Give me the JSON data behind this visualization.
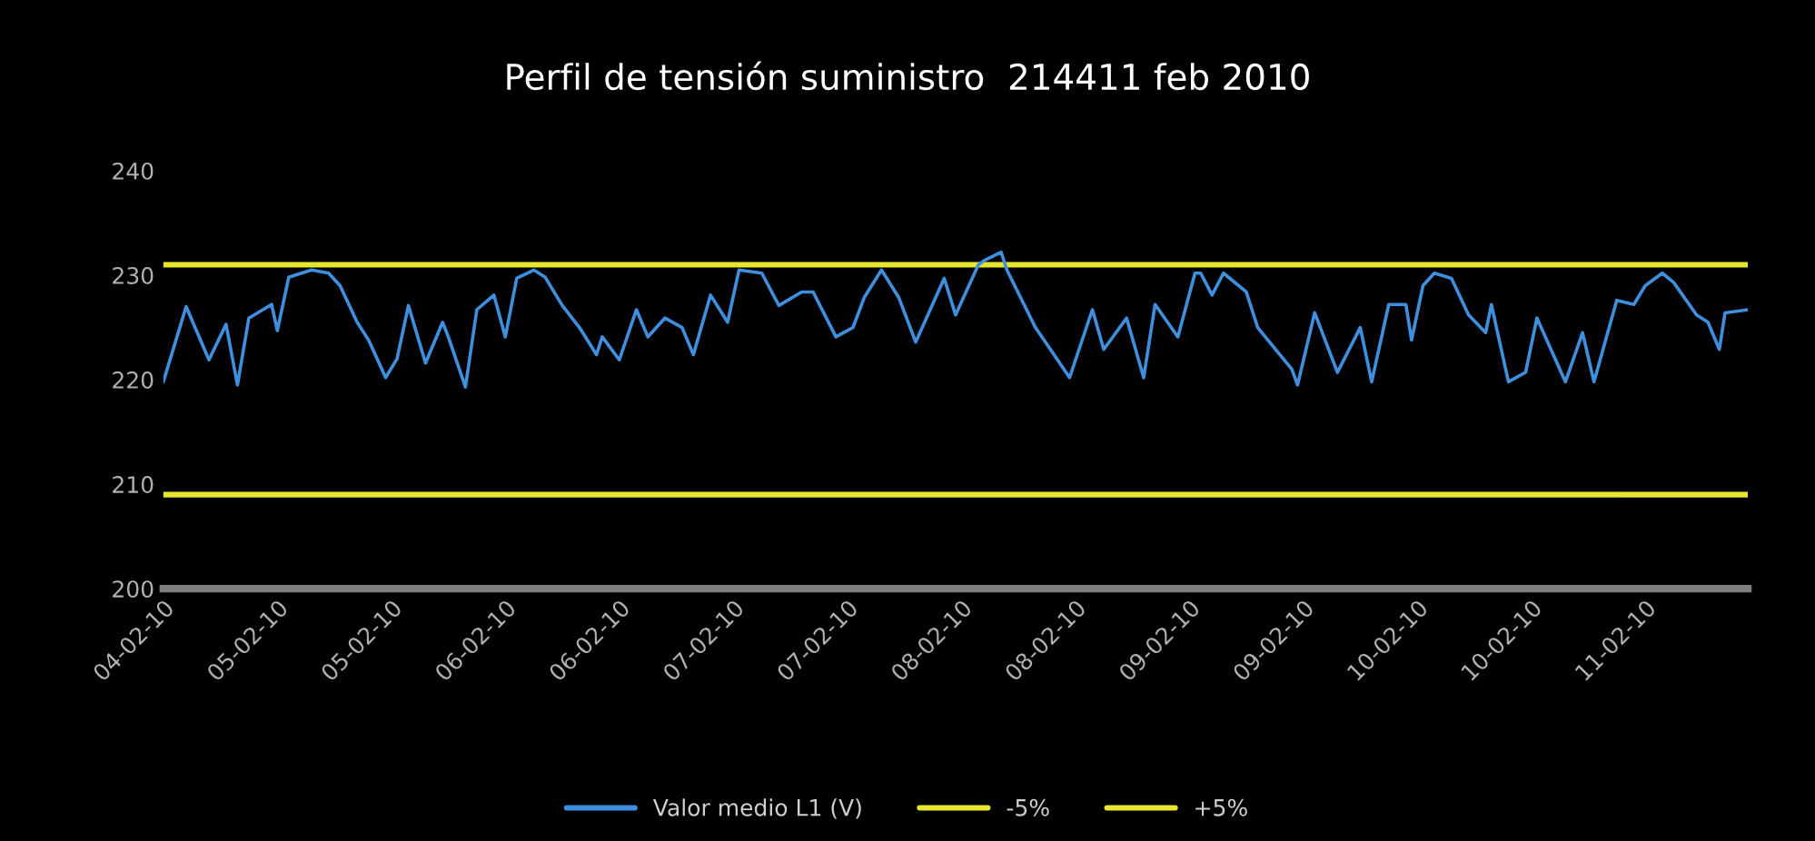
{
  "chart_data": {
    "type": "line",
    "title": "Perfil de tensión suministro  214411 feb 2010",
    "ylim": [
      200,
      240
    ],
    "yticks": [
      200,
      210,
      220,
      230,
      240
    ],
    "categories": [
      "04-02-10",
      null,
      null,
      null,
      null,
      null,
      null,
      null,
      null,
      null,
      null,
      null,
      null,
      null,
      null,
      null,
      null,
      null,
      null,
      null,
      "05-02-10",
      null,
      null,
      null,
      null,
      null,
      null,
      null,
      null,
      null,
      null,
      null,
      null,
      null,
      null,
      null,
      null,
      null,
      null,
      null,
      "05-02-10",
      null,
      null,
      null,
      null,
      null,
      null,
      null,
      null,
      null,
      null,
      null,
      null,
      null,
      null,
      null,
      null,
      null,
      null,
      null,
      "06-02-10",
      null,
      null,
      null,
      null,
      null,
      null,
      null,
      null,
      null,
      null,
      null,
      null,
      null,
      null,
      null,
      null,
      null,
      null,
      null,
      "06-02-10",
      null,
      null,
      null,
      null,
      null,
      null,
      null,
      null,
      null,
      null,
      null,
      null,
      null,
      null,
      null,
      null,
      null,
      null,
      null,
      "07-02-10",
      null,
      null,
      null,
      null,
      null,
      null,
      null,
      null,
      null,
      null,
      null,
      null,
      null,
      null,
      null,
      null,
      null,
      null,
      null,
      "07-02-10",
      null,
      null,
      null,
      null,
      null,
      null,
      null,
      null,
      null,
      null,
      null,
      null,
      null,
      null,
      null,
      null,
      null,
      null,
      null,
      "08-02-10",
      null,
      null,
      null,
      null,
      null,
      null,
      null,
      null,
      null,
      null,
      null,
      null,
      null,
      null,
      null,
      null,
      null,
      null,
      null,
      "08-02-10",
      null,
      null,
      null,
      null,
      null,
      null,
      null,
      null,
      null,
      null,
      null,
      null,
      null,
      null,
      null,
      null,
      null,
      null,
      null,
      "09-02-10",
      null,
      null,
      null,
      null,
      null,
      null,
      null,
      null,
      null,
      null,
      null,
      null,
      null,
      null,
      null,
      null,
      null,
      null,
      null,
      "09-02-10",
      null,
      null,
      null,
      null,
      null,
      null,
      null,
      null,
      null,
      null,
      null,
      null,
      null,
      null,
      null,
      null,
      null,
      null,
      null,
      "10-02-10",
      null,
      null,
      null,
      null,
      null,
      null,
      null,
      null,
      null,
      null,
      null,
      null,
      null,
      null,
      null,
      null,
      null,
      null,
      null,
      "10-02-10",
      null,
      null,
      null,
      null,
      null,
      null,
      null,
      null,
      null,
      null,
      null,
      null,
      null,
      null,
      null,
      null,
      null,
      null,
      null,
      "11-02-10",
      null,
      null,
      null,
      null,
      null,
      null,
      null,
      null,
      null,
      null,
      null,
      null,
      null,
      null,
      null,
      null,
      null,
      null
    ],
    "grid": false,
    "legend": "bottom",
    "marker": "none",
    "line_style": "solid",
    "series": [
      {
        "name": "-5%",
        "color": "#e6e62e",
        "values": [
          209,
          null,
          null,
          null,
          null,
          null,
          null,
          null,
          null,
          null,
          null,
          null,
          null,
          null,
          null,
          null,
          null,
          null,
          null,
          null,
          null,
          null,
          null,
          null,
          null,
          null,
          null,
          null,
          null,
          null,
          null,
          null,
          null,
          null,
          null,
          null,
          null,
          null,
          null,
          null,
          null,
          null,
          null,
          null,
          null,
          null,
          null,
          null,
          null,
          null,
          null,
          null,
          null,
          null,
          null,
          null,
          null,
          null,
          null,
          null,
          null,
          null,
          null,
          null,
          null,
          null,
          null,
          null,
          null,
          null,
          null,
          null,
          null,
          null,
          null,
          null,
          null,
          null,
          null,
          null,
          null,
          null,
          null,
          null,
          null,
          null,
          null,
          null,
          null,
          null,
          null,
          null,
          null,
          null,
          null,
          null,
          null,
          null,
          null,
          null,
          null,
          null,
          null,
          null,
          null,
          null,
          null,
          null,
          null,
          null,
          null,
          null,
          null,
          null,
          null,
          null,
          null,
          null,
          null,
          null,
          null,
          null,
          null,
          null,
          null,
          null,
          null,
          null,
          null,
          null,
          null,
          null,
          null,
          null,
          null,
          null,
          null,
          null,
          null,
          null,
          null,
          null,
          null,
          null,
          null,
          null,
          null,
          null,
          null,
          null,
          null,
          null,
          null,
          null,
          null,
          null,
          null,
          null,
          null,
          null,
          null,
          null,
          null,
          null,
          null,
          null,
          null,
          null,
          null,
          null,
          null,
          null,
          null,
          null,
          null,
          null,
          null,
          null,
          null,
          null,
          null,
          null,
          null,
          null,
          null,
          null,
          null,
          null,
          null,
          null,
          null,
          null,
          null,
          null,
          null,
          null,
          null,
          null,
          null,
          null,
          null,
          null,
          null,
          null,
          null,
          null,
          null,
          null,
          null,
          null,
          null,
          null,
          null,
          null,
          null,
          null,
          null,
          null,
          null,
          null,
          null,
          null,
          null,
          null,
          null,
          null,
          null,
          null,
          null,
          null,
          null,
          null,
          null,
          null,
          null,
          null,
          null,
          null,
          null,
          null,
          null,
          null,
          null,
          null,
          null,
          null,
          null,
          null,
          null,
          null,
          null,
          null,
          null,
          null,
          null,
          null,
          null,
          null,
          null,
          null,
          null,
          null,
          null,
          null,
          null,
          null,
          null,
          null,
          null,
          null,
          null,
          null,
          null,
          null,
          null,
          null,
          null,
          null,
          209
        ]
      },
      {
        "name": "+5%",
        "color": "#e6e62e",
        "values": [
          231,
          null,
          null,
          null,
          null,
          null,
          null,
          null,
          null,
          null,
          null,
          null,
          null,
          null,
          null,
          null,
          null,
          null,
          null,
          null,
          null,
          null,
          null,
          null,
          null,
          null,
          null,
          null,
          null,
          null,
          null,
          null,
          null,
          null,
          null,
          null,
          null,
          null,
          null,
          null,
          null,
          null,
          null,
          null,
          null,
          null,
          null,
          null,
          null,
          null,
          null,
          null,
          null,
          null,
          null,
          null,
          null,
          null,
          null,
          null,
          null,
          null,
          null,
          null,
          null,
          null,
          null,
          null,
          null,
          null,
          null,
          null,
          null,
          null,
          null,
          null,
          null,
          null,
          null,
          null,
          null,
          null,
          null,
          null,
          null,
          null,
          null,
          null,
          null,
          null,
          null,
          null,
          null,
          null,
          null,
          null,
          null,
          null,
          null,
          null,
          null,
          null,
          null,
          null,
          null,
          null,
          null,
          null,
          null,
          null,
          null,
          null,
          null,
          null,
          null,
          null,
          null,
          null,
          null,
          null,
          null,
          null,
          null,
          null,
          null,
          null,
          null,
          null,
          null,
          null,
          null,
          null,
          null,
          null,
          null,
          null,
          null,
          null,
          null,
          null,
          null,
          null,
          null,
          null,
          null,
          null,
          null,
          null,
          null,
          null,
          null,
          null,
          null,
          null,
          null,
          null,
          null,
          null,
          null,
          null,
          null,
          null,
          null,
          null,
          null,
          null,
          null,
          null,
          null,
          null,
          null,
          null,
          null,
          null,
          null,
          null,
          null,
          null,
          null,
          null,
          null,
          null,
          null,
          null,
          null,
          null,
          null,
          null,
          null,
          null,
          null,
          null,
          null,
          null,
          null,
          null,
          null,
          null,
          null,
          null,
          null,
          null,
          null,
          null,
          null,
          null,
          null,
          null,
          null,
          null,
          null,
          null,
          null,
          null,
          null,
          null,
          null,
          null,
          null,
          null,
          null,
          null,
          null,
          null,
          null,
          null,
          null,
          null,
          null,
          null,
          null,
          null,
          null,
          null,
          null,
          null,
          null,
          null,
          null,
          null,
          null,
          null,
          null,
          null,
          null,
          null,
          null,
          null,
          null,
          null,
          null,
          null,
          null,
          null,
          null,
          null,
          null,
          null,
          null,
          null,
          null,
          null,
          null,
          null,
          null,
          null,
          null,
          null,
          null,
          null,
          null,
          null,
          null,
          null,
          null,
          null,
          null,
          null,
          231
        ]
      },
      {
        "name": "Valor medio L1 (V)",
        "color": "#3f8fdf",
        "values": [
          219.8,
          null,
          null,
          null,
          227.0,
          null,
          null,
          null,
          221.9,
          null,
          null,
          225.3,
          null,
          219.5,
          null,
          225.9,
          null,
          null,
          null,
          227.2,
          224.7,
          null,
          229.8,
          null,
          null,
          null,
          230.5,
          null,
          null,
          230.2,
          null,
          229.0,
          null,
          null,
          225.5,
          null,
          223.8,
          null,
          null,
          220.2,
          null,
          222.0,
          null,
          227.1,
          null,
          null,
          221.6,
          null,
          null,
          225.5,
          224.1,
          null,
          null,
          219.3,
          null,
          226.7,
          null,
          null,
          228.1,
          null,
          224.1,
          null,
          229.7,
          null,
          null,
          230.5,
          null,
          229.8,
          null,
          null,
          227.1,
          null,
          null,
          225.0,
          null,
          null,
          222.4,
          224.1,
          null,
          null,
          221.9,
          null,
          null,
          226.7,
          null,
          224.1,
          null,
          null,
          225.9,
          null,
          null,
          225.0,
          null,
          222.4,
          null,
          null,
          228.1,
          null,
          null,
          225.5,
          null,
          230.5,
          null,
          null,
          null,
          230.2,
          null,
          null,
          227.1,
          null,
          null,
          null,
          228.4,
          null,
          228.4,
          null,
          null,
          null,
          224.1,
          null,
          null,
          225.0,
          null,
          227.9,
          null,
          null,
          230.5,
          null,
          null,
          227.9,
          null,
          null,
          223.6,
          null,
          null,
          null,
          null,
          229.7,
          null,
          226.2,
          null,
          null,
          null,
          231.0,
          231.4,
          null,
          null,
          232.2,
          230.5,
          null,
          null,
          null,
          null,
          225.0,
          null,
          null,
          null,
          null,
          null,
          220.2,
          null,
          null,
          null,
          226.7,
          null,
          222.9,
          null,
          null,
          null,
          225.9,
          null,
          null,
          220.2,
          null,
          227.2,
          null,
          null,
          null,
          224.1,
          null,
          null,
          230.2,
          230.2,
          null,
          228.1,
          null,
          230.2,
          null,
          null,
          null,
          228.4,
          null,
          225.0,
          null,
          null,
          null,
          null,
          null,
          221.0,
          219.5,
          null,
          null,
          226.4,
          null,
          null,
          null,
          220.7,
          null,
          null,
          null,
          225.0,
          null,
          219.8,
          null,
          null,
          227.2,
          null,
          null,
          227.2,
          223.8,
          null,
          229.0,
          null,
          230.2,
          null,
          null,
          229.7,
          null,
          null,
          226.2,
          null,
          null,
          224.5,
          227.2,
          null,
          null,
          219.8,
          null,
          null,
          220.7,
          null,
          225.9,
          null,
          null,
          null,
          null,
          219.8,
          null,
          null,
          224.5,
          null,
          219.8,
          null,
          null,
          null,
          227.6,
          null,
          null,
          227.2,
          null,
          229.0,
          null,
          null,
          230.2,
          null,
          229.3,
          null,
          null,
          null,
          226.2,
          null,
          225.5,
          null,
          222.9,
          226.4,
          null,
          null,
          null,
          226.7
        ]
      }
    ]
  }
}
